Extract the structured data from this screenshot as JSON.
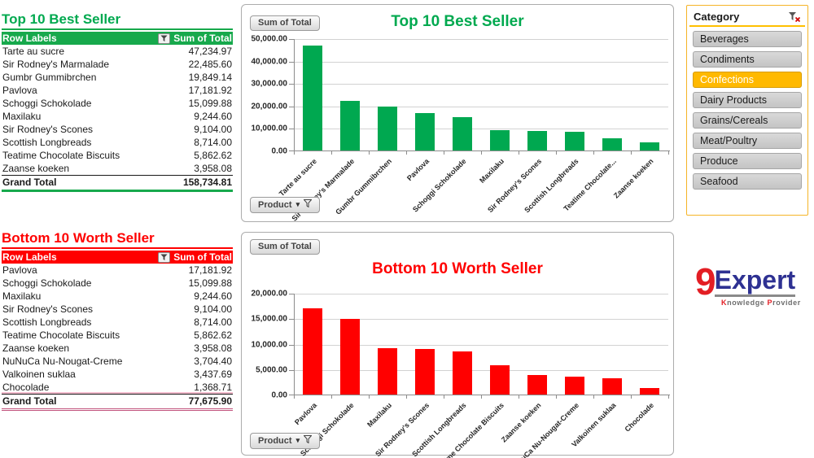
{
  "tables": [
    {
      "title": "Top 10 Best Seller",
      "title_color": "#00A94F",
      "header_bg": "#17A94C",
      "columns": [
        "Row Labels",
        "Sum of Total"
      ],
      "rows": [
        [
          "Tarte au sucre",
          "47,234.97"
        ],
        [
          "Sir Rodney's Marmalade",
          "22,485.60"
        ],
        [
          "Gumbr Gummibrchen",
          "19,849.14"
        ],
        [
          "Pavlova",
          "17,181.92"
        ],
        [
          "Schoggi Schokolade",
          "15,099.88"
        ],
        [
          "Maxilaku",
          "9,244.60"
        ],
        [
          "Sir Rodney's Scones",
          "9,104.00"
        ],
        [
          "Scottish Longbreads",
          "8,714.00"
        ],
        [
          "Teatime Chocolate Biscuits",
          "5,862.62"
        ],
        [
          "Zaanse koeken",
          "3,958.08"
        ]
      ],
      "grand_total": [
        "Grand Total",
        "158,734.81"
      ]
    },
    {
      "title": "Bottom 10 Worth Seller",
      "title_color": "#FF0000",
      "header_bg": "#FF0000",
      "columns": [
        "Row Labels",
        "Sum of Total"
      ],
      "rows": [
        [
          "Pavlova",
          "17,181.92"
        ],
        [
          "Schoggi Schokolade",
          "15,099.88"
        ],
        [
          "Maxilaku",
          "9,244.60"
        ],
        [
          "Sir Rodney's Scones",
          "9,104.00"
        ],
        [
          "Scottish Longbreads",
          "8,714.00"
        ],
        [
          "Teatime Chocolate Biscuits",
          "5,862.62"
        ],
        [
          "Zaanse koeken",
          "3,958.08"
        ],
        [
          "NuNuCa Nu-Nougat-Creme",
          "3,704.40"
        ],
        [
          "Valkoinen suklaa",
          "3,437.69"
        ],
        [
          "Chocolade",
          "1,368.71"
        ]
      ],
      "grand_total": [
        "Grand Total",
        "77,675.90"
      ]
    }
  ],
  "chart_data": [
    {
      "type": "bar",
      "title": "Top 10 Best Seller",
      "title_color": "#00A94F",
      "bar_color": "#00A850",
      "value_field_button": "Sum of Total",
      "axis_field_button": "Product",
      "categories": [
        "Tarte au sucre",
        "Sir Rodney's Marmalade",
        "Gumbr Gummibrchen",
        "Pavlova",
        "Schoggi Schokolade",
        "Maxilaku",
        "Sir Rodney's Scones",
        "Scottish Longbreads",
        "Teatime Chocolate Biscuits",
        "Zaanse koeken"
      ],
      "tick_labels": [
        "Tarte au sucre",
        "Sir Rodney's Marmalade",
        "Gumbr Gummibrchen",
        "Pavlova",
        "Schoggi Schokolade",
        "Maxilaku",
        "Sir Rodney's Scones",
        "Scottish Longbreads",
        "Teatime Chocolate...",
        "Zaanse koeken"
      ],
      "values": [
        47234.97,
        22485.6,
        19849.14,
        17181.92,
        15099.88,
        9244.6,
        9104.0,
        8714.0,
        5862.62,
        3958.08
      ],
      "xlabel": "",
      "ylabel": "",
      "ylim": [
        0,
        50000
      ],
      "yticks": [
        "50,000.00",
        "40,000.00",
        "30,000.00",
        "20,000.00",
        "10,000.00",
        "0.00"
      ],
      "grid": true,
      "legend": false
    },
    {
      "type": "bar",
      "title": "Bottom 10 Worth Seller",
      "title_color": "#FF0000",
      "bar_color": "#FF0000",
      "value_field_button": "Sum of Total",
      "axis_field_button": "Product",
      "categories": [
        "Pavlova",
        "Schoggi Schokolade",
        "Maxilaku",
        "Sir Rodney's Scones",
        "Scottish Longbreads",
        "Teatime Chocolate Biscuits",
        "Zaanse koeken",
        "NuNuCa Nu-Nougat-Creme",
        "Valkoinen suklaa",
        "Chocolade"
      ],
      "tick_labels": [
        "Pavlova",
        "Schoggi Schokolade",
        "Maxilaku",
        "Sir Rodney's Scones",
        "Scottish Longbreads",
        "Teatime Chocolate Biscuits",
        "Zaanse koeken",
        "NuNuCa Nu-Nougat-Creme",
        "Valkoinen suklaa",
        "Chocolade"
      ],
      "values": [
        17181.92,
        15099.88,
        9244.6,
        9104.0,
        8714.0,
        5862.62,
        3958.08,
        3704.4,
        3437.69,
        1368.71
      ],
      "xlabel": "",
      "ylabel": "",
      "ylim": [
        0,
        20000
      ],
      "yticks": [
        "20,000.00",
        "15,000.00",
        "10,000.00",
        "5,000.00",
        "0.00"
      ],
      "grid": true,
      "legend": false
    }
  ],
  "slicer": {
    "title": "Category",
    "selected_color": "#FFB900",
    "border_color": "#FFC000",
    "items": [
      {
        "label": "Beverages",
        "selected": false
      },
      {
        "label": "Condiments",
        "selected": false
      },
      {
        "label": "Confections",
        "selected": true
      },
      {
        "label": "Dairy Products",
        "selected": false
      },
      {
        "label": "Grains/Cereals",
        "selected": false
      },
      {
        "label": "Meat/Poultry",
        "selected": false
      },
      {
        "label": "Produce",
        "selected": false
      },
      {
        "label": "Seafood",
        "selected": false
      }
    ]
  },
  "logo": {
    "number": "9",
    "name": "Expert",
    "tagline": "Knowledge Provider",
    "number_color": "#E31E24",
    "name_color": "#2E3192"
  }
}
